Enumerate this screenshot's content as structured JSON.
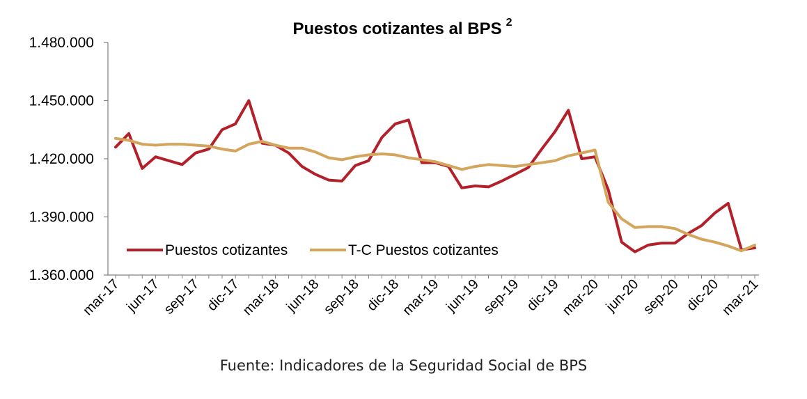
{
  "chart_data": {
    "type": "line",
    "title": "Puestos cotizantes al BPS",
    "title_superscript": "2",
    "source": "Fuente: Indicadores de la Seguridad Social de BPS",
    "ylim": [
      1360000,
      1480000
    ],
    "yticks": [
      1360000,
      1390000,
      1420000,
      1450000,
      1480000
    ],
    "ytick_labels": [
      "1.360.000",
      "1.390.000",
      "1.420.000",
      "1.450.000",
      "1.480.000"
    ],
    "x": [
      "mar-17",
      "abr-17",
      "may-17",
      "jun-17",
      "jul-17",
      "ago-17",
      "sep-17",
      "oct-17",
      "nov-17",
      "dic-17",
      "ene-18",
      "feb-18",
      "mar-18",
      "abr-18",
      "may-18",
      "jun-18",
      "jul-18",
      "ago-18",
      "sep-18",
      "oct-18",
      "nov-18",
      "dic-18",
      "ene-19",
      "feb-19",
      "mar-19",
      "abr-19",
      "may-19",
      "jun-19",
      "jul-19",
      "ago-19",
      "sep-19",
      "oct-19",
      "nov-19",
      "dic-19",
      "ene-20",
      "feb-20",
      "mar-20",
      "abr-20",
      "may-20",
      "jun-20",
      "jul-20",
      "ago-20",
      "sep-20",
      "oct-20",
      "nov-20",
      "dic-20",
      "ene-21",
      "feb-21",
      "mar-21"
    ],
    "xtick_labels": [
      "mar-17",
      "jun-17",
      "sep-17",
      "dic-17",
      "mar-18",
      "jun-18",
      "sep-18",
      "dic-18",
      "mar-19",
      "jun-19",
      "sep-19",
      "dic-19",
      "mar-20",
      "jun-20",
      "sep-20",
      "dic-20",
      "mar-21"
    ],
    "grid": false,
    "legend_position": "bottom-left",
    "series": [
      {
        "name": "Puestos cotizantes",
        "color": "#b3202a",
        "values": [
          1426000,
          1433000,
          1415000,
          1421000,
          1419000,
          1417000,
          1423000,
          1425000,
          1435000,
          1438000,
          1450000,
          1428000,
          1427000,
          1423000,
          1416000,
          1412000,
          1409000,
          1408500,
          1416500,
          1419000,
          1431000,
          1438000,
          1440000,
          1418000,
          1418000,
          1416000,
          1405000,
          1406000,
          1405500,
          1408500,
          1412000,
          1415500,
          1425000,
          1434000,
          1445000,
          1420000,
          1421000,
          1404000,
          1377000,
          1372000,
          1375500,
          1376500,
          1376500,
          1381500,
          1385500,
          1392000,
          1397000,
          1373000,
          1374000
        ]
      },
      {
        "name": "T-C Puestos cotizantes",
        "color": "#d4a55c",
        "values": [
          1430500,
          1429500,
          1427500,
          1427000,
          1427500,
          1427500,
          1427000,
          1426500,
          1425000,
          1424000,
          1427500,
          1429000,
          1427000,
          1425500,
          1425500,
          1423500,
          1420500,
          1419500,
          1421000,
          1422000,
          1422500,
          1422000,
          1420500,
          1419500,
          1418500,
          1416500,
          1414500,
          1416000,
          1417000,
          1416500,
          1416000,
          1417000,
          1418000,
          1419000,
          1421500,
          1423000,
          1424500,
          1397500,
          1389000,
          1384500,
          1385000,
          1385000,
          1384000,
          1381000,
          1378500,
          1377000,
          1375000,
          1372500,
          1375500
        ]
      }
    ]
  }
}
